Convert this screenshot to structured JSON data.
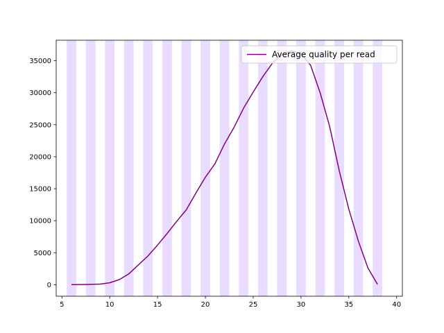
{
  "chart_data": {
    "type": "line",
    "title": "",
    "xlabel": "",
    "ylabel": "",
    "xlim": [
      4.4,
      40.6
    ],
    "ylim": [
      -1800,
      38200
    ],
    "xticks": [
      5,
      10,
      15,
      20,
      25,
      30,
      35,
      40
    ],
    "yticks": [
      0,
      5000,
      10000,
      15000,
      20000,
      25000,
      30000,
      35000
    ],
    "grid": false,
    "legend_position": "upper right",
    "background_bands": {
      "color": "#eadcff",
      "ranges": [
        [
          5.5,
          6.5
        ],
        [
          7.5,
          8.5
        ],
        [
          9.5,
          10.5
        ],
        [
          11.5,
          12.5
        ],
        [
          13.5,
          14.5
        ],
        [
          15.5,
          16.5
        ],
        [
          17.5,
          18.5
        ],
        [
          19.5,
          20.5
        ],
        [
          21.5,
          22.5
        ],
        [
          23.5,
          24.5
        ],
        [
          25.5,
          26.5
        ],
        [
          27.5,
          28.5
        ],
        [
          29.5,
          30.5
        ],
        [
          31.5,
          32.5
        ],
        [
          33.5,
          34.5
        ],
        [
          35.5,
          36.5
        ],
        [
          37.5,
          38.5
        ]
      ]
    },
    "series": [
      {
        "name": "Average quality per read",
        "color": "#800080",
        "x": [
          6,
          7,
          8,
          9,
          10,
          11,
          12,
          13,
          14,
          15,
          16,
          17,
          18,
          19,
          20,
          21,
          22,
          23,
          24,
          25,
          26,
          27,
          28,
          29,
          30,
          31,
          32,
          33,
          34,
          35,
          36,
          37,
          38
        ],
        "values": [
          20,
          30,
          50,
          100,
          300,
          800,
          1700,
          3100,
          4500,
          6200,
          8000,
          9900,
          11700,
          14300,
          16800,
          18900,
          22000,
          24600,
          27600,
          30100,
          32500,
          34600,
          36000,
          36500,
          36100,
          34300,
          30000,
          24700,
          17800,
          11800,
          6800,
          2600,
          50
        ]
      }
    ]
  }
}
